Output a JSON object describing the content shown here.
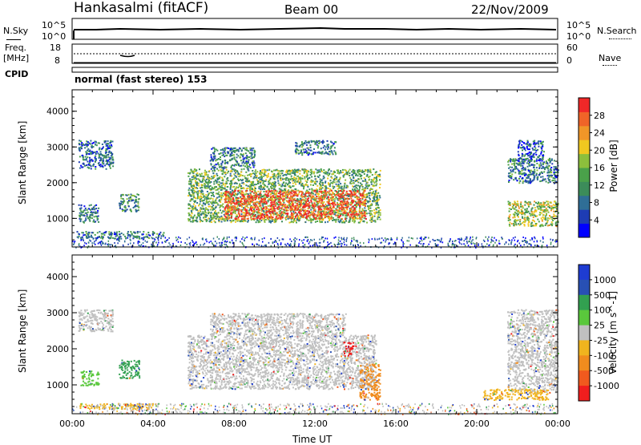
{
  "header": {
    "station": "Hankasalmi (fitACF)",
    "beam": "Beam 00",
    "date": "22/Nov/2009"
  },
  "top_panels": {
    "nsky_label": "N.Sky",
    "nsky_ticks": [
      "10^5",
      "10^0"
    ],
    "nsearch_label": "N.Search",
    "nsearch_ticks": [
      "10^5",
      "10^0"
    ],
    "freq_label": "Freq.",
    "freq_unit": "[MHz]",
    "freq_ticks": [
      "18",
      "8"
    ],
    "nave_label": "Nave",
    "nave_ticks": [
      "60",
      "0"
    ],
    "cpid_label": "CPID",
    "cpid_text": "normal (fast stereo) 153"
  },
  "colors": {
    "velocity_ground_scatter": "#c0c0c0"
  },
  "chart_data": [
    {
      "type": "heatmap",
      "title": "Power",
      "xlabel": "",
      "ylabel": "Slant Range [km]",
      "y_ticks": [
        "1000",
        "2000",
        "3000",
        "4000"
      ],
      "ylim": [
        200,
        4600
      ],
      "xlim": [
        "00:00",
        "24:00"
      ],
      "colorbar_label": "Power [dB]",
      "colorbar_ticks": [
        "4",
        "8",
        "12",
        "16",
        "20",
        "24",
        "28"
      ],
      "colorbar_colors": [
        "#0000ff",
        "#1e3cb4",
        "#2f6e96",
        "#3c8c5a",
        "#4aa14a",
        "#8cbf3c",
        "#f0c820",
        "#f09628",
        "#f06428",
        "#f02828"
      ],
      "regions": [
        {
          "t0": 0.3,
          "t1": 2.0,
          "r0": 2400,
          "r1": 3200,
          "level": 0.25
        },
        {
          "t0": 0.3,
          "t1": 1.3,
          "r0": 900,
          "r1": 1400,
          "level": 0.3
        },
        {
          "t0": 2.3,
          "t1": 3.3,
          "r0": 1200,
          "r1": 1700,
          "level": 0.35
        },
        {
          "t0": 0.2,
          "t1": 4.5,
          "r0": 450,
          "r1": 650,
          "level": 0.3
        },
        {
          "t0": 5.7,
          "t1": 15.2,
          "r0": 900,
          "r1": 2400,
          "level": 0.45
        },
        {
          "t0": 7.5,
          "t1": 14.5,
          "r0": 1000,
          "r1": 1800,
          "level": 0.9
        },
        {
          "t0": 6.8,
          "t1": 9.0,
          "r0": 2400,
          "r1": 3000,
          "level": 0.3
        },
        {
          "t0": 11.0,
          "t1": 13.0,
          "r0": 2800,
          "r1": 3200,
          "level": 0.3
        },
        {
          "t0": 21.5,
          "t1": 24.0,
          "r0": 2000,
          "r1": 2700,
          "level": 0.3
        },
        {
          "t0": 21.5,
          "t1": 24.0,
          "r0": 800,
          "r1": 1500,
          "level": 0.55
        },
        {
          "t0": 22.0,
          "t1": 23.3,
          "r0": 2600,
          "r1": 3200,
          "level": 0.2
        }
      ]
    },
    {
      "type": "heatmap",
      "title": "Velocity",
      "xlabel": "Time UT",
      "ylabel": "Slant Range [km]",
      "y_ticks": [
        "1000",
        "2000",
        "3000",
        "4000"
      ],
      "x_ticks": [
        "00:00",
        "04:00",
        "08:00",
        "12:00",
        "16:00",
        "20:00",
        "00:00"
      ],
      "ylim": [
        200,
        4600
      ],
      "xlim": [
        "00:00",
        "24:00"
      ],
      "colorbar_label": "Velocity [m s^-1]",
      "colorbar_ticks": [
        "1000",
        "500",
        "100",
        "25",
        "-25",
        "-100",
        "-500",
        "-1000"
      ],
      "colorbar_colors": [
        "#1e3cd2",
        "#2850b4",
        "#32a050",
        "#5ac83c",
        "#c0c0c0",
        "#f0b41e",
        "#f08c1e",
        "#f05a1e",
        "#f01e1e"
      ],
      "regions": [
        {
          "t0": 0.3,
          "t1": 2.0,
          "r0": 2500,
          "r1": 3100,
          "color": "#c0c0c0"
        },
        {
          "t0": 5.7,
          "t1": 15.0,
          "r0": 900,
          "r1": 2400,
          "color": "#c0c0c0"
        },
        {
          "t0": 6.8,
          "t1": 13.5,
          "r0": 2400,
          "r1": 3000,
          "color": "#c0c0c0"
        },
        {
          "t0": 21.5,
          "t1": 24.0,
          "r0": 800,
          "r1": 3100,
          "color": "#c0c0c0"
        },
        {
          "t0": 0.4,
          "t1": 1.3,
          "r0": 1000,
          "r1": 1400,
          "color": "#5ac83c"
        },
        {
          "t0": 2.3,
          "t1": 3.3,
          "r0": 1200,
          "r1": 1700,
          "color": "#32a050"
        },
        {
          "t0": 14.2,
          "t1": 15.2,
          "r0": 600,
          "r1": 1600,
          "color": "#f08c1e"
        },
        {
          "t0": 13.4,
          "t1": 13.9,
          "r0": 1800,
          "r1": 2200,
          "color": "#f01e1e"
        },
        {
          "t0": 0.3,
          "t1": 4.0,
          "r0": 350,
          "r1": 500,
          "color": "#f0b41e"
        },
        {
          "t0": 20.3,
          "t1": 23.5,
          "r0": 600,
          "r1": 900,
          "color": "#f0b41e"
        }
      ]
    }
  ]
}
